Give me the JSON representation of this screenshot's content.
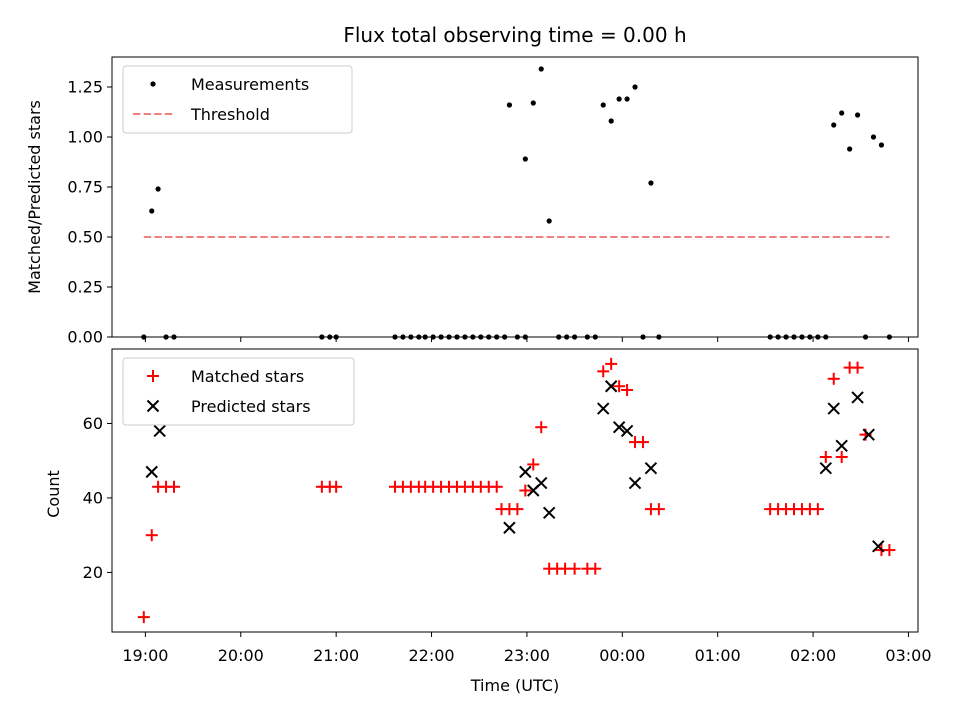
{
  "title": "Flux total observing time = 0.00 h",
  "chart_data": [
    {
      "type": "scatter",
      "panel": "top",
      "ylabel": "Matched/Predicted stars",
      "xlabel": "",
      "ylim": [
        0,
        1.4
      ],
      "xlim": [
        "18:39",
        "03:06"
      ],
      "yticks": [
        0.0,
        0.25,
        0.5,
        0.75,
        1.0,
        1.25
      ],
      "ytick_labels": [
        "0.00",
        "0.25",
        "0.50",
        "0.75",
        "1.00",
        "1.25"
      ],
      "grid": false,
      "legend": "top-left",
      "series": [
        {
          "name": "Measurements",
          "kind": "points",
          "color": "#000000",
          "points": [
            [
              "18:59",
              0.0
            ],
            [
              "19:04",
              0.63
            ],
            [
              "19:08",
              0.74
            ],
            [
              "19:13",
              0.0
            ],
            [
              "19:18",
              0.0
            ],
            [
              "20:51",
              0.0
            ],
            [
              "20:56",
              0.0
            ],
            [
              "21:00",
              0.0
            ],
            [
              "21:37",
              0.0
            ],
            [
              "21:42",
              0.0
            ],
            [
              "21:47",
              0.0
            ],
            [
              "21:52",
              0.0
            ],
            [
              "21:56",
              0.0
            ],
            [
              "22:01",
              0.0
            ],
            [
              "22:06",
              0.0
            ],
            [
              "22:11",
              0.0
            ],
            [
              "22:16",
              0.0
            ],
            [
              "22:21",
              0.0
            ],
            [
              "22:26",
              0.0
            ],
            [
              "22:31",
              0.0
            ],
            [
              "22:36",
              0.0
            ],
            [
              "22:41",
              0.0
            ],
            [
              "22:46",
              0.0
            ],
            [
              "22:49",
              1.16
            ],
            [
              "22:54",
              0.0
            ],
            [
              "22:59",
              0.0
            ],
            [
              "22:59",
              0.89
            ],
            [
              "23:04",
              1.17
            ],
            [
              "23:09",
              1.34
            ],
            [
              "23:14",
              0.58
            ],
            [
              "23:20",
              0.0
            ],
            [
              "23:25",
              0.0
            ],
            [
              "23:30",
              0.0
            ],
            [
              "23:38",
              0.0
            ],
            [
              "23:43",
              0.0
            ],
            [
              "23:48",
              1.16
            ],
            [
              "23:53",
              1.08
            ],
            [
              "23:58",
              1.19
            ],
            [
              "00:03",
              1.19
            ],
            [
              "00:08",
              1.25
            ],
            [
              "00:13",
              0.0
            ],
            [
              "00:18",
              0.77
            ],
            [
              "00:23",
              0.0
            ],
            [
              "01:33",
              0.0
            ],
            [
              "01:38",
              0.0
            ],
            [
              "01:43",
              0.0
            ],
            [
              "01:48",
              0.0
            ],
            [
              "01:53",
              0.0
            ],
            [
              "01:58",
              0.0
            ],
            [
              "02:03",
              0.0
            ],
            [
              "02:08",
              0.0
            ],
            [
              "02:13",
              1.06
            ],
            [
              "02:18",
              1.12
            ],
            [
              "02:23",
              0.94
            ],
            [
              "02:28",
              1.11
            ],
            [
              "02:33",
              0.0
            ],
            [
              "02:38",
              1.0
            ],
            [
              "02:43",
              0.96
            ],
            [
              "02:48",
              0.0
            ]
          ]
        },
        {
          "name": "Threshold",
          "kind": "dashed-line",
          "color": "#f08080",
          "points": [
            [
              "18:59",
              0.5
            ],
            [
              "02:48",
              0.5
            ]
          ]
        }
      ]
    },
    {
      "type": "scatter",
      "panel": "bottom",
      "ylabel": "Count",
      "xlabel": "Time (UTC)",
      "ylim": [
        4,
        80
      ],
      "xlim": [
        "18:39",
        "03:06"
      ],
      "yticks": [
        20,
        40,
        60
      ],
      "ytick_labels": [
        "20",
        "40",
        "60"
      ],
      "xticks": [
        "19:00",
        "20:00",
        "21:00",
        "22:00",
        "23:00",
        "00:00",
        "01:00",
        "02:00",
        "03:00"
      ],
      "grid": false,
      "legend": "top-left",
      "series": [
        {
          "name": "Matched stars",
          "kind": "plus",
          "color": "#ff0000",
          "points": [
            [
              "18:59",
              8
            ],
            [
              "19:04",
              30
            ],
            [
              "19:08",
              43
            ],
            [
              "19:13",
              43
            ],
            [
              "19:18",
              43
            ],
            [
              "20:51",
              43
            ],
            [
              "20:56",
              43
            ],
            [
              "21:00",
              43
            ],
            [
              "21:37",
              43
            ],
            [
              "21:42",
              43
            ],
            [
              "21:47",
              43
            ],
            [
              "21:52",
              43
            ],
            [
              "21:56",
              43
            ],
            [
              "22:01",
              43
            ],
            [
              "22:06",
              43
            ],
            [
              "22:11",
              43
            ],
            [
              "22:16",
              43
            ],
            [
              "22:21",
              43
            ],
            [
              "22:26",
              43
            ],
            [
              "22:31",
              43
            ],
            [
              "22:36",
              43
            ],
            [
              "22:41",
              43
            ],
            [
              "22:44",
              37
            ],
            [
              "22:49",
              37
            ],
            [
              "22:54",
              37
            ],
            [
              "22:59",
              42
            ],
            [
              "23:04",
              49
            ],
            [
              "23:09",
              59
            ],
            [
              "23:14",
              21
            ],
            [
              "23:19",
              21
            ],
            [
              "23:24",
              21
            ],
            [
              "23:30",
              21
            ],
            [
              "23:38",
              21
            ],
            [
              "23:43",
              21
            ],
            [
              "23:48",
              74
            ],
            [
              "23:53",
              76
            ],
            [
              "23:58",
              70
            ],
            [
              "00:03",
              69
            ],
            [
              "00:08",
              55
            ],
            [
              "00:13",
              55
            ],
            [
              "00:18",
              37
            ],
            [
              "00:23",
              37
            ],
            [
              "01:33",
              37
            ],
            [
              "01:38",
              37
            ],
            [
              "01:43",
              37
            ],
            [
              "01:48",
              37
            ],
            [
              "01:53",
              37
            ],
            [
              "01:58",
              37
            ],
            [
              "02:03",
              37
            ],
            [
              "02:08",
              51
            ],
            [
              "02:13",
              72
            ],
            [
              "02:18",
              51
            ],
            [
              "02:23",
              75
            ],
            [
              "02:28",
              75
            ],
            [
              "02:33",
              57
            ],
            [
              "02:43",
              26
            ],
            [
              "02:48",
              26
            ]
          ]
        },
        {
          "name": "Predicted stars",
          "kind": "cross",
          "color": "#000000",
          "points": [
            [
              "19:04",
              47
            ],
            [
              "19:09",
              58
            ],
            [
              "22:49",
              32
            ],
            [
              "22:59",
              47
            ],
            [
              "23:04",
              42
            ],
            [
              "23:09",
              44
            ],
            [
              "23:14",
              36
            ],
            [
              "23:48",
              64
            ],
            [
              "23:53",
              70
            ],
            [
              "23:58",
              59
            ],
            [
              "00:03",
              58
            ],
            [
              "00:08",
              44
            ],
            [
              "00:18",
              48
            ],
            [
              "02:08",
              48
            ],
            [
              "02:13",
              64
            ],
            [
              "02:18",
              54
            ],
            [
              "02:28",
              67
            ],
            [
              "02:35",
              57
            ],
            [
              "02:41",
              27
            ]
          ]
        }
      ]
    }
  ]
}
